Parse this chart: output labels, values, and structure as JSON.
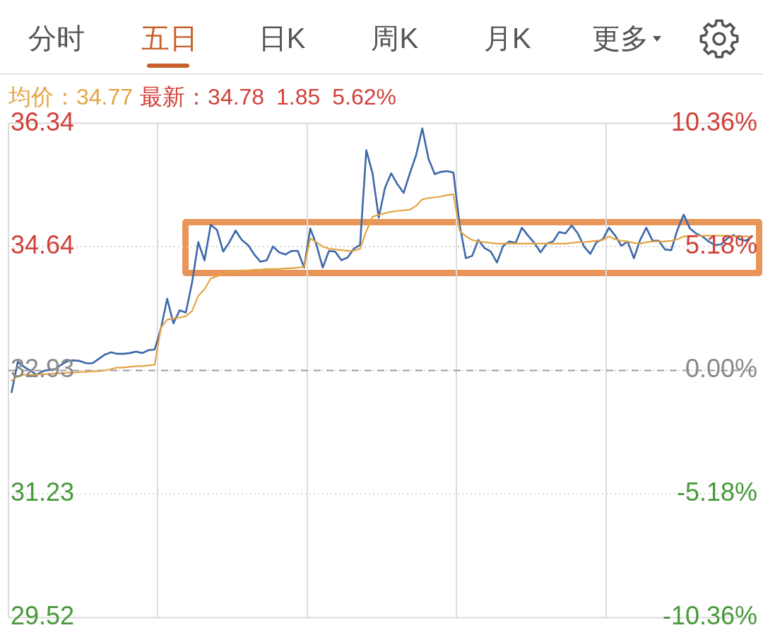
{
  "chart_data": {
    "type": "line",
    "annotations": [
      "分时",
      "五日",
      "日K",
      "周K",
      "月K",
      "更多",
      "均价：34.77",
      "最新：34.78 1.85 5.62%"
    ],
    "categories": [
      null,
      null,
      null,
      null,
      null,
      null,
      null,
      null,
      null,
      null,
      null,
      null,
      null,
      null,
      null,
      null,
      null,
      null,
      null,
      null,
      null,
      null,
      null,
      null,
      null,
      null,
      null,
      null,
      null,
      null,
      null,
      null,
      null,
      null,
      null,
      null,
      null,
      null,
      null,
      null,
      null,
      null,
      null,
      null,
      null,
      null,
      null,
      null,
      null,
      null,
      null,
      null,
      null,
      null,
      null,
      null,
      null,
      null,
      null,
      null,
      null,
      null,
      null,
      null,
      null,
      null,
      null,
      null,
      null,
      null,
      null,
      null,
      null,
      null,
      null,
      null,
      null,
      null,
      null,
      null,
      null,
      null,
      null,
      null,
      null,
      null,
      null,
      null,
      null,
      null,
      null,
      null,
      null,
      null,
      null,
      null,
      null,
      null,
      null,
      null,
      null,
      null,
      null,
      null,
      null,
      null,
      null,
      null,
      null,
      null,
      null,
      null,
      null,
      null,
      null,
      null,
      null,
      null,
      null,
      null
    ],
    "ylim": [
      29.52,
      36.34
    ],
    "yticks": [
      29.52,
      31.23,
      32.93,
      34.64,
      36.34
    ],
    "y2lim": [
      -10.36,
      10.36
    ],
    "y2ticks": [
      {
        "value": -10.36,
        "label": "-10.36%"
      },
      {
        "value": -5.18,
        "label": "-5.18%"
      },
      {
        "value": 0,
        "label": "0.00%"
      },
      {
        "value": 5.18,
        "label": "5.18%"
      },
      {
        "value": 10.36,
        "label": "10.36%"
      }
    ],
    "ref_lines": [
      {
        "axis": "y",
        "value": 32.93,
        "color": "#9e9e9e",
        "line_style": "dashed"
      }
    ],
    "grid": true,
    "legend": false,
    "marker": "none",
    "series": [
      {
        "color": "#3d68aa",
        "values": [
          32.63,
          33.05,
          32.98,
          32.93,
          32.87,
          32.92,
          32.94,
          32.95,
          33.01,
          33.06,
          33.07,
          33.06,
          33.03,
          33.03,
          33.09,
          33.15,
          33.18,
          33.16,
          33.16,
          33.17,
          33.19,
          33.17,
          33.21,
          33.22,
          33.51,
          33.92,
          33.58,
          33.76,
          33.73,
          34.14,
          34.7,
          34.45,
          34.94,
          34.87,
          34.57,
          34.7,
          34.86,
          34.73,
          34.66,
          34.53,
          34.43,
          34.45,
          34.64,
          34.56,
          34.53,
          34.58,
          34.58,
          34.35,
          34.89,
          34.66,
          34.35,
          34.58,
          34.57,
          34.45,
          34.49,
          34.61,
          34.66,
          35.97,
          35.65,
          35.04,
          35.45,
          35.65,
          35.5,
          35.38,
          35.65,
          35.9,
          36.27,
          35.85,
          35.64,
          35.67,
          35.68,
          35.66,
          34.94,
          34.48,
          34.51,
          34.73,
          34.62,
          34.57,
          34.42,
          34.65,
          34.71,
          34.69,
          34.9,
          34.79,
          34.69,
          34.56,
          34.68,
          34.71,
          34.84,
          34.82,
          34.93,
          34.82,
          34.64,
          34.54,
          34.7,
          34.74,
          34.9,
          34.79,
          34.65,
          34.71,
          34.48,
          34.73,
          34.9,
          34.72,
          34.72,
          34.6,
          34.59,
          34.87,
          35.08,
          34.89,
          34.82,
          34.78,
          34.71,
          34.66,
          34.67,
          34.75,
          34.8,
          34.74,
          34.72,
          34.78
        ]
      },
      {
        "color": "#e5a444",
        "values": [
          32.79,
          32.85,
          32.87,
          32.87,
          32.87,
          32.88,
          32.88,
          32.89,
          32.89,
          32.9,
          32.9,
          32.91,
          32.91,
          32.92,
          32.92,
          32.93,
          32.95,
          32.97,
          32.97,
          32.98,
          32.99,
          32.99,
          33.0,
          33.01,
          33.52,
          33.63,
          33.65,
          33.66,
          33.68,
          33.75,
          33.96,
          34.05,
          34.2,
          34.23,
          34.26,
          34.29,
          34.3,
          34.31,
          34.31,
          34.32,
          34.32,
          34.33,
          34.33,
          34.33,
          34.34,
          34.34,
          34.35,
          34.36,
          34.75,
          34.7,
          34.64,
          34.61,
          34.6,
          34.59,
          34.58,
          34.58,
          34.61,
          34.85,
          35.05,
          35.08,
          35.1,
          35.12,
          35.13,
          35.14,
          35.15,
          35.2,
          35.29,
          35.31,
          35.32,
          35.33,
          35.35,
          35.36,
          34.86,
          34.78,
          34.73,
          34.71,
          34.7,
          34.69,
          34.68,
          34.68,
          34.68,
          34.68,
          34.68,
          34.68,
          34.68,
          34.68,
          34.68,
          34.68,
          34.68,
          34.68,
          34.69,
          34.7,
          34.7,
          34.71,
          34.72,
          34.73,
          34.78,
          34.74,
          34.72,
          34.71,
          34.69,
          34.68,
          34.7,
          34.71,
          34.71,
          34.71,
          34.72,
          34.74,
          34.78,
          34.78,
          34.79,
          34.79,
          34.79,
          34.79,
          34.79,
          34.79,
          34.78,
          34.78,
          34.78,
          34.77
        ]
      }
    ]
  }
}
